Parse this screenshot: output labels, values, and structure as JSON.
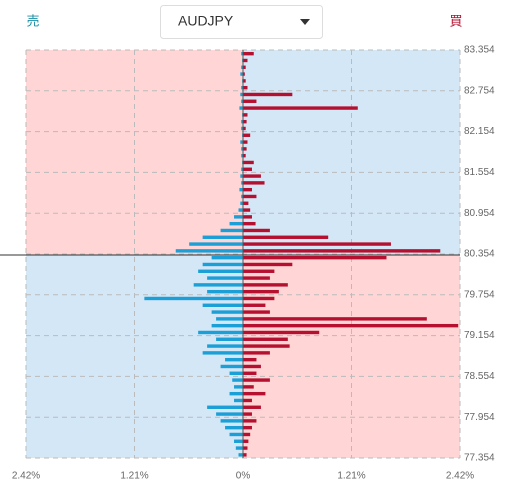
{
  "header": {
    "sell_label": "売",
    "buy_label": "買",
    "instrument": "AUDJPY"
  },
  "chart_data": {
    "type": "orderbook",
    "levels": [
      83.3,
      83.2,
      83.1,
      83.0,
      82.9,
      82.8,
      82.7,
      82.6,
      82.5,
      82.4,
      82.3,
      82.2,
      82.1,
      82.0,
      81.9,
      81.8,
      81.7,
      81.6,
      81.5,
      81.4,
      81.3,
      81.2,
      81.1,
      81.0,
      80.9,
      80.8,
      80.7,
      80.6,
      80.5,
      80.4,
      80.3,
      80.2,
      80.1,
      80.0,
      79.9,
      79.8,
      79.7,
      79.6,
      79.5,
      79.4,
      79.3,
      79.2,
      79.1,
      79.0,
      78.9,
      78.8,
      78.7,
      78.6,
      78.5,
      78.4,
      78.3,
      78.2,
      78.1,
      78.0,
      77.9,
      77.8,
      77.7,
      77.6,
      77.5,
      77.4
    ],
    "series": [
      {
        "name": "売",
        "color": "#1a9fd6",
        "side": "left",
        "values": [
          0.02,
          0.01,
          0.02,
          0.03,
          0.01,
          0.02,
          0.03,
          0.02,
          0.04,
          0.01,
          0.02,
          0.02,
          0.01,
          0.03,
          0.02,
          0.02,
          0.01,
          0.02,
          0.03,
          0.02,
          0.04,
          0.02,
          0.03,
          0.05,
          0.1,
          0.15,
          0.25,
          0.45,
          0.6,
          0.75,
          0.35,
          0.45,
          0.5,
          0.4,
          0.55,
          0.4,
          1.1,
          0.45,
          0.35,
          0.3,
          0.35,
          0.5,
          0.3,
          0.4,
          0.45,
          0.2,
          0.25,
          0.15,
          0.12,
          0.1,
          0.15,
          0.1,
          0.4,
          0.3,
          0.25,
          0.2,
          0.15,
          0.1,
          0.08,
          0.05
        ]
      },
      {
        "name": "買",
        "color": "#b5102f",
        "side": "right",
        "values": [
          0.12,
          0.05,
          0.03,
          0.02,
          0.03,
          0.05,
          0.55,
          0.15,
          1.28,
          0.05,
          0.04,
          0.03,
          0.08,
          0.05,
          0.04,
          0.03,
          0.12,
          0.1,
          0.2,
          0.24,
          0.1,
          0.15,
          0.06,
          0.08,
          0.1,
          0.14,
          0.3,
          0.95,
          1.65,
          2.2,
          1.6,
          0.55,
          0.35,
          0.3,
          0.5,
          0.4,
          0.35,
          0.25,
          0.3,
          2.05,
          2.4,
          0.85,
          0.5,
          0.52,
          0.3,
          0.15,
          0.2,
          0.15,
          0.3,
          0.12,
          0.25,
          0.1,
          0.2,
          0.1,
          0.15,
          0.1,
          0.08,
          0.06,
          0.05,
          0.04
        ]
      }
    ],
    "current_price": 80.339,
    "ylim": [
      77.354,
      83.354
    ],
    "yticks": [
      83.354,
      82.754,
      82.154,
      81.554,
      80.954,
      80.354,
      79.754,
      79.154,
      78.554,
      77.954,
      77.354
    ],
    "xlim": [
      -2.42,
      2.42
    ],
    "xticks": [
      {
        "value": -2.42,
        "label": "2.42%"
      },
      {
        "value": -1.21,
        "label": "1.21%"
      },
      {
        "value": 0,
        "label": "0%"
      },
      {
        "value": 1.21,
        "label": "1.21%"
      },
      {
        "value": 2.42,
        "label": "2.42%"
      }
    ],
    "grid": true
  }
}
